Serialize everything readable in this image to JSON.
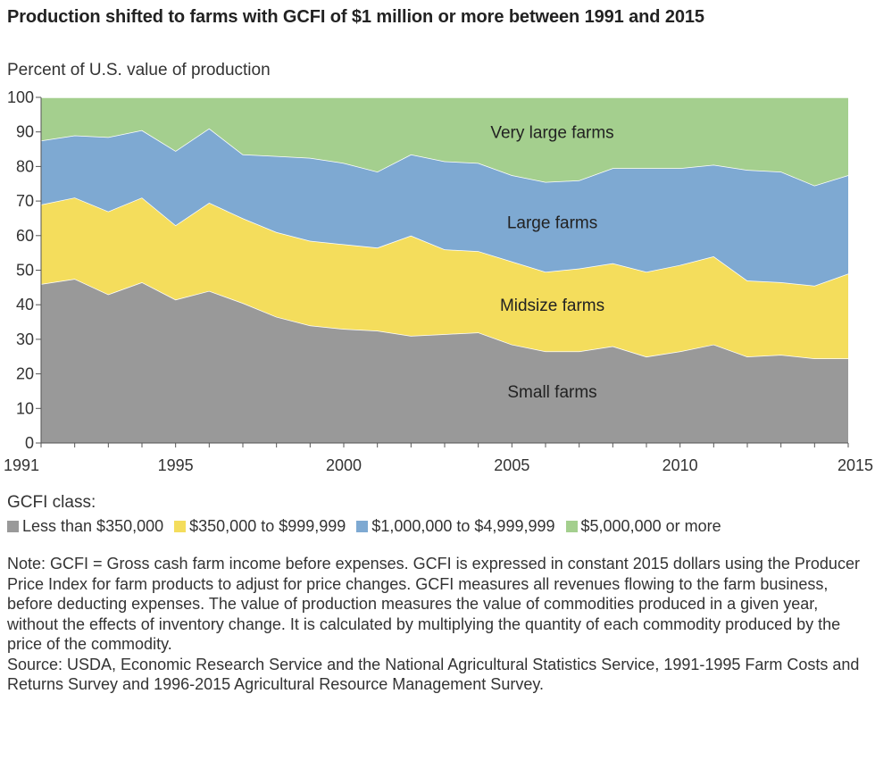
{
  "title": "Production shifted to farms with GCFI of $1 million or more between 1991 and 2015",
  "note": "Note: GCFI = Gross cash farm income before expenses. GCFI is expressed in constant 2015 dollars using the Producer Price Index for farm products to adjust for price changes. GCFI measures all revenues flowing to the farm business, before deducting expenses. The value of production measures the value of commodities produced in a given year, without the effects of inventory change. It is calculated by multiplying the quantity of each commodity produced by the price of the commodity.",
  "source": "Source: USDA, Economic Research Service and the National Agricultural Statistics Service, 1991-1995 Farm Costs and Returns Survey and 1996-2015 Agricultural Resource Management Survey.",
  "chart_data": {
    "type": "area",
    "stacked": true,
    "ylabel": "Percent of U.S. value of production",
    "ylim": [
      0,
      100
    ],
    "yticks": [
      0,
      10,
      20,
      30,
      40,
      50,
      60,
      70,
      80,
      90,
      100
    ],
    "xlim": [
      1991,
      2015
    ],
    "xticks": [
      1991,
      1995,
      2000,
      2005,
      2010,
      2015
    ],
    "x": [
      1991,
      1992,
      1993,
      1994,
      1995,
      1996,
      1997,
      1998,
      1999,
      2000,
      2001,
      2002,
      2003,
      2004,
      2005,
      2006,
      2007,
      2008,
      2009,
      2010,
      2011,
      2012,
      2013,
      2014,
      2015
    ],
    "legend_title": "GCFI class:",
    "legend_position": "bottom",
    "series": [
      {
        "name": "Less than $350,000",
        "area_label": "Small farms",
        "color": "#999999",
        "values": [
          46,
          47.5,
          43,
          46.5,
          41.5,
          44,
          40.5,
          36.5,
          34,
          33,
          32.5,
          31,
          31.5,
          32,
          28.5,
          26.5,
          26.5,
          28,
          25,
          26.5,
          28.5,
          25,
          25.5,
          24.5,
          24.5
        ]
      },
      {
        "name": "$350,000 to $999,999",
        "area_label": "Midsize farms",
        "color": "#F4DD5C",
        "values": [
          23,
          23.5,
          24,
          24.5,
          21.5,
          25.5,
          24.5,
          24.5,
          24.5,
          24.5,
          24,
          29,
          24.5,
          23.5,
          24,
          23,
          24,
          24,
          24.5,
          25,
          25.5,
          22,
          21,
          21,
          24.5
        ]
      },
      {
        "name": "$1,000,000 to $4,999,999",
        "area_label": "Large farms",
        "color": "#7EA9D2",
        "values": [
          18.5,
          18,
          21.5,
          19.5,
          21.5,
          21.5,
          18.5,
          22,
          24,
          23.5,
          22,
          23.5,
          25.5,
          25.5,
          25,
          26,
          25.5,
          27.5,
          30,
          28,
          26.5,
          32,
          32,
          29,
          28.5
        ]
      },
      {
        "name": "$5,000,000 or more",
        "area_label": "Very large farms",
        "color": "#A4CF8E",
        "values": [
          12.5,
          11,
          11.5,
          9.5,
          15.5,
          9,
          16.5,
          17,
          17.5,
          19,
          21.5,
          16.5,
          18.5,
          19,
          22.5,
          24.5,
          24,
          20.5,
          20.5,
          20.5,
          19.5,
          21,
          21.5,
          25.5,
          22.5
        ]
      }
    ]
  }
}
